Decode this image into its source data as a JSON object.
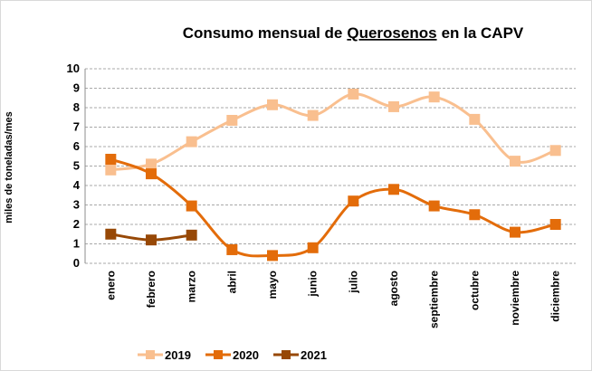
{
  "chart_data": {
    "type": "line",
    "title": [
      "Consumo mensual de",
      "Querosenos",
      "en la CAPV"
    ],
    "y_label": "miles de toneladas/mes",
    "categories": [
      "enero",
      "febrero",
      "marzo",
      "abril",
      "mayo",
      "junio",
      "julio",
      "agosto",
      "septiembre",
      "octubre",
      "noviembre",
      "diciembre"
    ],
    "series": [
      {
        "name": "2019",
        "color": "#f9bf8f",
        "values": [
          4.8,
          5.1,
          6.25,
          7.35,
          8.15,
          7.6,
          8.7,
          8.05,
          8.55,
          7.4,
          5.25,
          5.8
        ]
      },
      {
        "name": "2020",
        "color": "#e36c0a",
        "values": [
          5.35,
          4.6,
          2.95,
          0.7,
          0.4,
          0.8,
          3.2,
          3.8,
          2.95,
          2.5,
          1.6,
          2.0
        ]
      },
      {
        "name": "2021",
        "color": "#974806",
        "values": [
          1.5,
          1.2,
          1.45,
          null,
          null,
          null,
          null,
          null,
          null,
          null,
          null,
          null
        ]
      }
    ],
    "ylim": [
      0,
      10
    ],
    "yticks": [
      0,
      1,
      2,
      3,
      4,
      5,
      6,
      7,
      8,
      9,
      10
    ],
    "grid": true,
    "legend": "bottom"
  }
}
